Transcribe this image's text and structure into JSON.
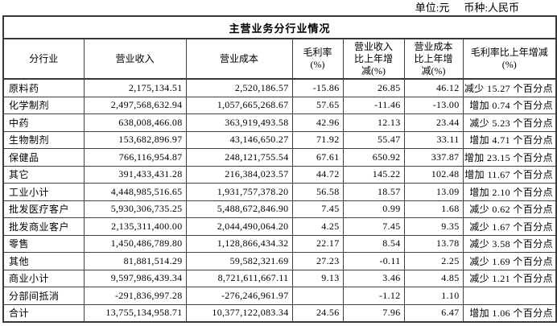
{
  "meta": {
    "unit_label": "单位:元",
    "currency_label": "币种:人民币"
  },
  "table": {
    "title": "主营业务分行业情况",
    "columns": [
      {
        "key": "industry",
        "label": "分行业",
        "label_lines": [
          "分行业"
        ]
      },
      {
        "key": "revenue",
        "label": "营业收入",
        "label_lines": [
          "营业收入"
        ]
      },
      {
        "key": "cost",
        "label": "营业成本",
        "label_lines": [
          "营业成本"
        ]
      },
      {
        "key": "gross_margin",
        "label": "毛利率(%)",
        "label_lines": [
          "毛利率",
          "(%)"
        ]
      },
      {
        "key": "revenue_yoy",
        "label": "营业收入比上年增减(%)",
        "label_lines": [
          "营业收入",
          "比上年增",
          "减(%)"
        ]
      },
      {
        "key": "cost_yoy",
        "label": "营业成本比上年增减(%)",
        "label_lines": [
          "营业成本",
          "比上年增",
          "减(%)"
        ]
      },
      {
        "key": "margin_yoy",
        "label": "毛利率比上年增减(%)",
        "label_lines": [
          "毛利率比上年增减",
          "(%)"
        ]
      }
    ],
    "rows": [
      {
        "cells": [
          "原料药",
          "2,175,134.51",
          "2,520,186.57",
          "-15.86",
          "26.85",
          "46.12",
          "减少 15.27 个百分点"
        ]
      },
      {
        "cells": [
          "化学制剂",
          "2,497,568,632.94",
          "1,057,665,268.67",
          "57.65",
          "-11.46",
          "-13.00",
          "增加 0.74 个百分点"
        ]
      },
      {
        "cells": [
          "中药",
          "638,008,466.08",
          "363,919,493.58",
          "42.96",
          "12.13",
          "23.44",
          "减少 5.23 个百分点"
        ]
      },
      {
        "cells": [
          "生物制剂",
          "153,682,896.97",
          "43,146,650.27",
          "71.92",
          "55.47",
          "33.11",
          "增加 4.71 个百分点"
        ]
      },
      {
        "cells": [
          "保健品",
          "766,116,954.87",
          "248,121,755.54",
          "67.61",
          "650.92",
          "337.87",
          "增加 23.15 个百分点"
        ]
      },
      {
        "cells": [
          "其它",
          "391,433,431.28",
          "216,384,023.57",
          "44.72",
          "145.22",
          "102.48",
          "增加 11.67 个百分点"
        ]
      },
      {
        "cells": [
          "工业小计",
          "4,448,985,516.65",
          "1,931,757,378.20",
          "56.58",
          "18.57",
          "13.09",
          "增加 2.10 个百分点"
        ]
      },
      {
        "cells": [
          "批发医疗客户",
          "5,930,306,735.25",
          "5,488,672,846.90",
          "7.45",
          "0.99",
          "1.68",
          "减少 0.62 个百分点"
        ]
      },
      {
        "cells": [
          "批发商业客户",
          "2,135,311,400.00",
          "2,044,490,064.20",
          "4.25",
          "7.45",
          "9.35",
          "减少 1.67 个百分点"
        ]
      },
      {
        "cells": [
          "零售",
          "1,450,486,789.80",
          "1,128,866,434.32",
          "22.17",
          "8.54",
          "13.78",
          "减少 3.58 个百分点"
        ]
      },
      {
        "cells": [
          "其他",
          "81,881,514.29",
          "59,582,321.69",
          "27.23",
          "-0.11",
          "2.25",
          "减少 1.69 个百分点"
        ]
      },
      {
        "cells": [
          "商业小计",
          "9,597,986,439.34",
          "8,721,611,667.11",
          "9.13",
          "3.46",
          "4.85",
          "减少 1.21 个百分点"
        ]
      },
      {
        "cells": [
          "分部间抵消",
          "-291,836,997.28",
          "-276,246,961.97",
          "",
          "-1.12",
          "1.10",
          ""
        ]
      },
      {
        "cells": [
          "合计",
          "13,755,134,958.71",
          "10,377,122,083.34",
          "24.56",
          "7.96",
          "6.47",
          "增加 1.06 个百分点"
        ]
      }
    ]
  }
}
